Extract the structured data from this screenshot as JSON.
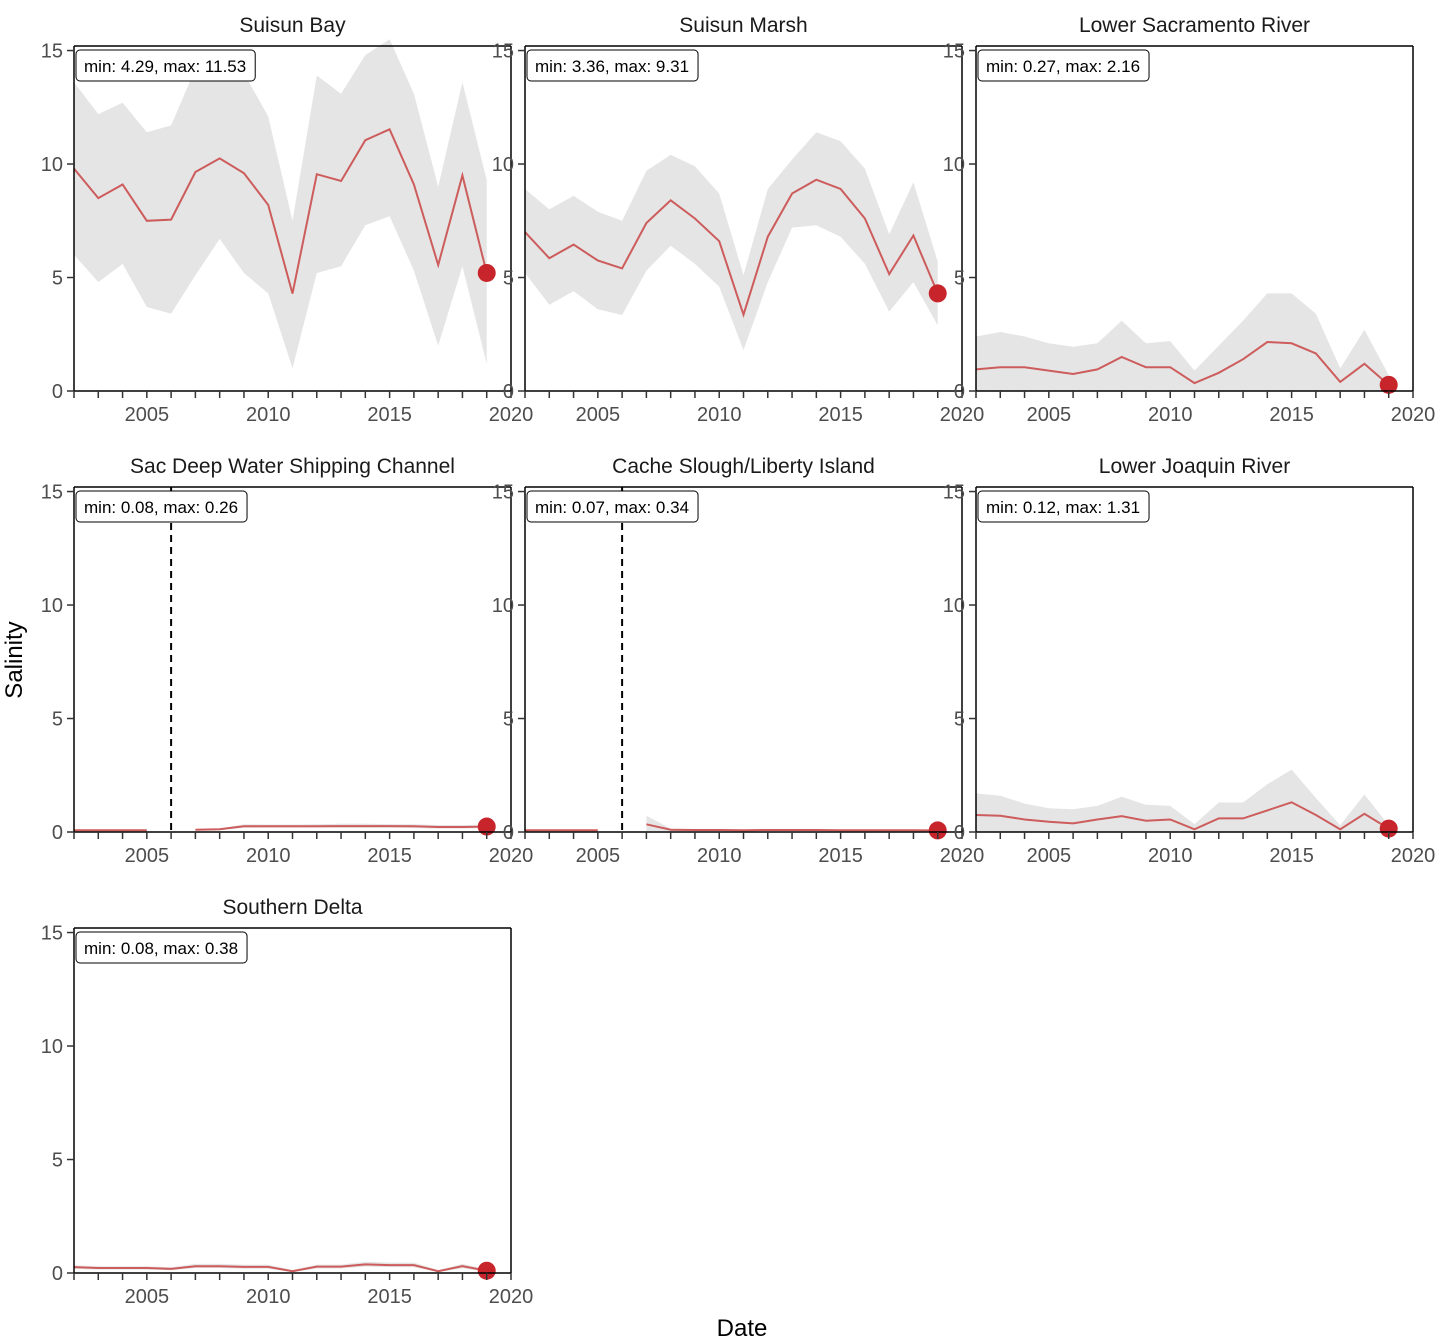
{
  "chart_data": {
    "type": "line",
    "xlabel": "Date",
    "ylabel": "Salinity",
    "xlim": [
      2002,
      2020
    ],
    "ylim": [
      0,
      15.2
    ],
    "x_ticks": [
      2005,
      2010,
      2015,
      2020
    ],
    "y_ticks": [
      0,
      5,
      10,
      15
    ],
    "colors": {
      "line": "#cd5c5c",
      "point": "#c8242b",
      "ribbon": "#e5e5e5"
    },
    "panels": [
      {
        "title": "Suisun Bay",
        "minmax_label": "min: 4.29, max: 11.53",
        "x": [
          2002,
          2003,
          2004,
          2005,
          2006,
          2007,
          2008,
          2009,
          2010,
          2011,
          2012,
          2013,
          2014,
          2015,
          2016,
          2017,
          2018,
          2019
        ],
        "y": [
          9.8,
          8.5,
          9.1,
          7.5,
          7.55,
          9.65,
          10.25,
          9.6,
          8.2,
          4.29,
          9.55,
          9.25,
          11.05,
          11.53,
          9.1,
          5.55,
          9.5,
          5.2
        ],
        "lower": [
          6.0,
          4.8,
          5.6,
          3.7,
          3.4,
          5.1,
          6.7,
          5.2,
          4.3,
          1.0,
          5.2,
          5.5,
          7.3,
          7.7,
          5.3,
          2.0,
          5.5,
          1.2
        ],
        "upper": [
          13.6,
          12.2,
          12.7,
          11.4,
          11.7,
          14.2,
          13.8,
          14.0,
          12.1,
          7.5,
          13.9,
          13.1,
          14.8,
          15.5,
          13.1,
          9.0,
          13.6,
          9.3
        ],
        "last_point": {
          "x": 2019,
          "y": 5.2
        },
        "gap_marker": null
      },
      {
        "title": "Suisun Marsh",
        "minmax_label": "min: 3.36, max: 9.31",
        "x": [
          2002,
          2003,
          2004,
          2005,
          2006,
          2007,
          2008,
          2009,
          2010,
          2011,
          2012,
          2013,
          2014,
          2015,
          2016,
          2017,
          2018,
          2019
        ],
        "y": [
          7.0,
          5.85,
          6.45,
          5.75,
          5.4,
          7.4,
          8.4,
          7.6,
          6.6,
          3.36,
          6.8,
          8.7,
          9.31,
          8.9,
          7.6,
          5.15,
          6.85,
          4.3
        ],
        "lower": [
          5.2,
          3.8,
          4.4,
          3.6,
          3.35,
          5.3,
          6.4,
          5.6,
          4.6,
          1.8,
          4.8,
          7.2,
          7.3,
          6.8,
          5.6,
          3.5,
          4.8,
          2.9
        ],
        "upper": [
          8.9,
          8.0,
          8.6,
          7.9,
          7.5,
          9.7,
          10.4,
          9.9,
          8.7,
          5.1,
          8.9,
          10.2,
          11.4,
          11.0,
          9.8,
          6.9,
          9.2,
          5.7
        ],
        "last_point": {
          "x": 2019,
          "y": 4.3
        },
        "gap_marker": null
      },
      {
        "title": "Lower Sacramento River",
        "minmax_label": "min: 0.27, max: 2.16",
        "x": [
          2002,
          2003,
          2004,
          2005,
          2006,
          2007,
          2008,
          2009,
          2010,
          2011,
          2012,
          2013,
          2014,
          2015,
          2016,
          2017,
          2018,
          2019
        ],
        "y": [
          0.95,
          1.05,
          1.05,
          0.9,
          0.75,
          0.95,
          1.5,
          1.05,
          1.05,
          0.35,
          0.8,
          1.4,
          2.16,
          2.1,
          1.65,
          0.4,
          1.2,
          0.27
        ],
        "lower": [
          0.0,
          0.0,
          0.0,
          0.0,
          0.0,
          0.0,
          0.0,
          0.0,
          0.0,
          0.0,
          0.0,
          0.0,
          0.0,
          0.0,
          0.0,
          0.0,
          0.0,
          0.0
        ],
        "upper": [
          2.4,
          2.6,
          2.4,
          2.1,
          1.95,
          2.1,
          3.1,
          2.1,
          2.2,
          0.9,
          2.0,
          3.1,
          4.3,
          4.3,
          3.4,
          1.0,
          2.7,
          0.7
        ],
        "last_point": {
          "x": 2019,
          "y": 0.27
        },
        "gap_marker": null
      },
      {
        "title": "Sac Deep Water Shipping Channel",
        "minmax_label": "min: 0.08, max: 0.26",
        "x": [
          2002,
          2003,
          2004,
          2005,
          null,
          2007,
          2008,
          2009,
          2010,
          2011,
          2012,
          2013,
          2014,
          2015,
          2016,
          2017,
          2018,
          2019
        ],
        "y": [
          0.08,
          0.08,
          0.08,
          0.08,
          null,
          0.1,
          0.12,
          0.25,
          0.25,
          0.25,
          0.25,
          0.26,
          0.26,
          0.26,
          0.25,
          0.22,
          0.22,
          0.24
        ],
        "lower": [
          0.06,
          0.06,
          0.06,
          0.06,
          null,
          0.08,
          0.09,
          0.18,
          0.19,
          0.19,
          0.19,
          0.18,
          0.18,
          0.18,
          0.17,
          0.15,
          0.15,
          0.17
        ],
        "upper": [
          0.1,
          0.1,
          0.1,
          0.1,
          null,
          0.13,
          0.16,
          0.34,
          0.33,
          0.33,
          0.34,
          0.36,
          0.36,
          0.35,
          0.34,
          0.31,
          0.31,
          0.33
        ],
        "last_point": {
          "x": 2019,
          "y": 0.24
        },
        "gap_marker": 2006
      },
      {
        "title": "Cache Slough/Liberty Island",
        "minmax_label": "min: 0.07, max: 0.34",
        "x": [
          2002,
          2003,
          2004,
          2005,
          null,
          2007,
          2008,
          2009,
          2010,
          2011,
          2012,
          2013,
          2014,
          2015,
          2016,
          2017,
          2018,
          2019
        ],
        "y": [
          0.08,
          0.08,
          0.08,
          0.08,
          null,
          0.34,
          0.1,
          0.09,
          0.09,
          0.08,
          0.09,
          0.09,
          0.09,
          0.08,
          0.08,
          0.08,
          0.08,
          0.07
        ],
        "lower": [
          0.06,
          0.06,
          0.06,
          0.06,
          null,
          0.05,
          0.05,
          0.05,
          0.05,
          0.05,
          0.05,
          0.05,
          0.05,
          0.05,
          0.05,
          0.05,
          0.05,
          0.05
        ],
        "upper": [
          0.1,
          0.1,
          0.1,
          0.1,
          null,
          0.72,
          0.15,
          0.12,
          0.12,
          0.11,
          0.12,
          0.12,
          0.12,
          0.11,
          0.11,
          0.11,
          0.11,
          0.1
        ],
        "last_point": {
          "x": 2019,
          "y": 0.07
        },
        "gap_marker": 2006
      },
      {
        "title": "Lower Joaquin River",
        "minmax_label": "min: 0.12, max: 1.31",
        "x": [
          2002,
          2003,
          2004,
          2005,
          2006,
          2007,
          2008,
          2009,
          2010,
          2011,
          2012,
          2013,
          2014,
          2015,
          2016,
          2017,
          2018,
          2019
        ],
        "y": [
          0.75,
          0.72,
          0.55,
          0.45,
          0.38,
          0.55,
          0.7,
          0.5,
          0.55,
          0.12,
          0.6,
          0.6,
          0.95,
          1.31,
          0.75,
          0.12,
          0.8,
          0.15
        ],
        "lower": [
          0.0,
          0.0,
          0.0,
          0.0,
          0.0,
          0.0,
          0.0,
          0.0,
          0.0,
          0.0,
          0.0,
          0.0,
          0.0,
          0.0,
          0.0,
          0.0,
          0.0,
          0.0
        ],
        "upper": [
          1.7,
          1.6,
          1.25,
          1.05,
          1.0,
          1.15,
          1.55,
          1.2,
          1.15,
          0.35,
          1.3,
          1.3,
          2.1,
          2.75,
          1.5,
          0.3,
          1.65,
          0.3
        ],
        "last_point": {
          "x": 2019,
          "y": 0.15
        },
        "gap_marker": null
      },
      {
        "title": "Southern Delta",
        "minmax_label": "min: 0.08, max: 0.38",
        "x": [
          2002,
          2003,
          2004,
          2005,
          2006,
          2007,
          2008,
          2009,
          2010,
          2011,
          2012,
          2013,
          2014,
          2015,
          2016,
          2017,
          2018,
          2019
        ],
        "y": [
          0.26,
          0.22,
          0.22,
          0.22,
          0.18,
          0.3,
          0.3,
          0.27,
          0.27,
          0.08,
          0.28,
          0.28,
          0.38,
          0.35,
          0.35,
          0.08,
          0.3,
          0.1
        ],
        "lower": [
          0.18,
          0.15,
          0.15,
          0.15,
          0.12,
          0.22,
          0.22,
          0.19,
          0.19,
          0.04,
          0.2,
          0.2,
          0.28,
          0.26,
          0.26,
          0.04,
          0.21,
          0.05
        ],
        "upper": [
          0.34,
          0.3,
          0.3,
          0.3,
          0.25,
          0.4,
          0.4,
          0.36,
          0.36,
          0.13,
          0.37,
          0.37,
          0.5,
          0.46,
          0.46,
          0.13,
          0.4,
          0.16
        ],
        "last_point": {
          "x": 2019,
          "y": 0.1
        },
        "gap_marker": null
      }
    ]
  }
}
